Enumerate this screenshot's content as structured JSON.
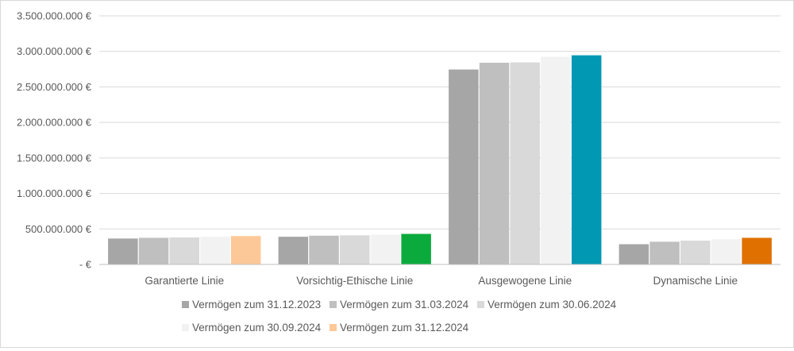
{
  "chart_data": {
    "type": "bar",
    "categories": [
      "Garantierte Linie",
      "Vorsichtig-Ethische Linie",
      "Ausgewogene Linie",
      "Dynamische Linie"
    ],
    "series": [
      {
        "name": "Vermögen zum 31.12.2023",
        "values": [
          365000000,
          390000000,
          2745000000,
          285000000
        ]
      },
      {
        "name": "Vermögen zum 31.03.2024",
        "values": [
          375000000,
          405000000,
          2840000000,
          320000000
        ]
      },
      {
        "name": "Vermögen zum 30.06.2024",
        "values": [
          380000000,
          410000000,
          2845000000,
          335000000
        ]
      },
      {
        "name": "Vermögen zum 30.09.2024",
        "values": [
          390000000,
          420000000,
          2925000000,
          355000000
        ]
      },
      {
        "name": "Vermögen zum 31.12.2024",
        "values": [
          400000000,
          430000000,
          2945000000,
          375000000
        ]
      }
    ],
    "series_colors": [
      "#a6a6a6",
      "#bfbfbf",
      "#d9d9d9",
      "#f2f2f2",
      null
    ],
    "highlight_colors": [
      "#fdc897",
      "#0aab3c",
      "#0098b3",
      "#e07000"
    ],
    "ylim": [
      0,
      3500000000
    ],
    "yticks": [
      0,
      500000000,
      1000000000,
      1500000000,
      2000000000,
      2500000000,
      3000000000,
      3500000000
    ],
    "ytick_labels": [
      "-   €",
      "500.000.000 €",
      "1.000.000.000 €",
      "1.500.000.000 €",
      "2.000.000.000 €",
      "2.500.000.000 €",
      "3.000.000.000 €",
      "3.500.000.000 €"
    ],
    "legend_position": "bottom",
    "legend_marker_colors": [
      "#a6a6a6",
      "#bfbfbf",
      "#d9d9d9",
      "#f2f2f2",
      "#fdc897"
    ],
    "grid": true
  }
}
